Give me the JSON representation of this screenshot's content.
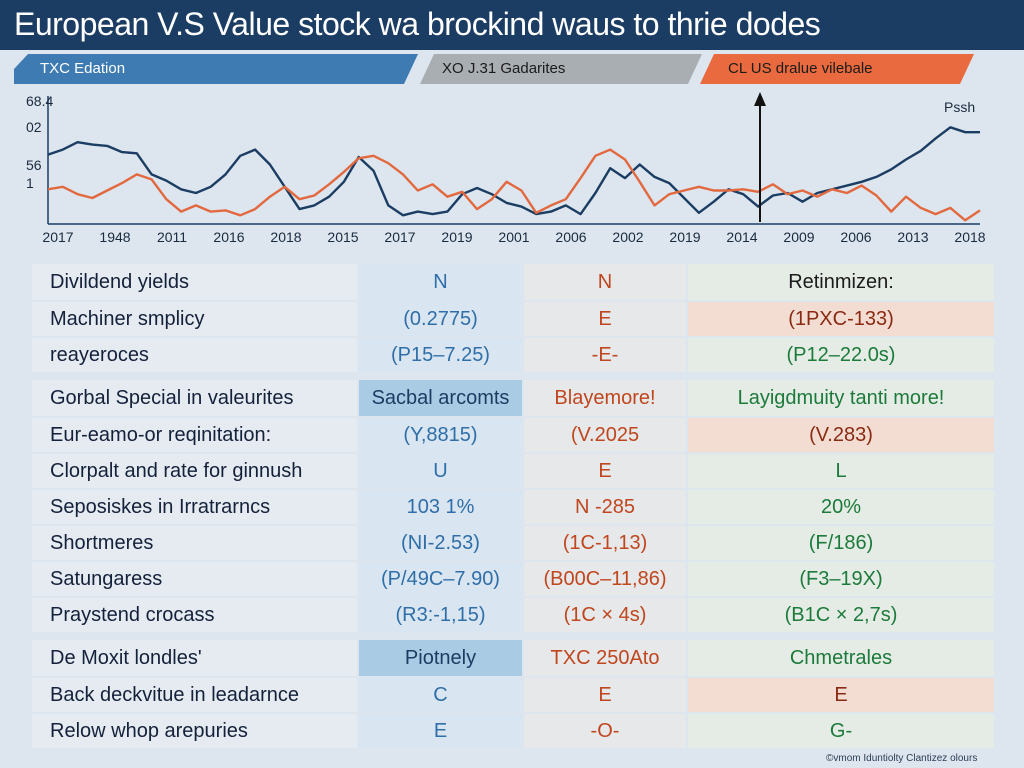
{
  "title": "European V.S Value stock wa brockind waus to thrie dodes",
  "ribbons": [
    "TXC Edation",
    "XO J.31 Gadarites",
    "CL US dralue vilebale"
  ],
  "chart_data": {
    "type": "line",
    "y_labels": [
      "68.4",
      "02",
      "56",
      "1"
    ],
    "x_labels": [
      "2017",
      "1948",
      "2011",
      "2016",
      "2018",
      "2015",
      "2017",
      "2019",
      "2001",
      "2006",
      "2002",
      "2019",
      "2014",
      "2009",
      "2006",
      "2013",
      "2018"
    ],
    "annotation": "Pssh",
    "ylim": [
      0,
      100
    ],
    "series": [
      {
        "name": "navy",
        "color": "#1c3d63",
        "values": [
          56,
          60,
          66,
          64,
          63,
          58,
          57,
          40,
          35,
          28,
          25,
          30,
          40,
          55,
          60,
          48,
          30,
          12,
          15,
          22,
          34,
          54,
          43,
          15,
          7,
          10,
          8,
          10,
          24,
          29,
          24,
          17,
          14,
          8,
          10,
          15,
          8,
          25,
          45,
          37,
          48,
          38,
          33,
          21,
          9,
          18,
          28,
          24,
          14,
          23,
          25,
          18,
          25,
          28,
          31,
          34,
          38,
          44,
          52,
          59,
          69,
          78,
          74,
          74
        ]
      },
      {
        "name": "orange",
        "color": "#e2693f",
        "values": [
          28,
          30,
          24,
          21,
          27,
          33,
          40,
          36,
          20,
          10,
          15,
          10,
          11,
          7,
          12,
          22,
          30,
          20,
          23,
          32,
          42,
          53,
          55,
          49,
          40,
          27,
          32,
          22,
          26,
          12,
          20,
          34,
          27,
          9,
          15,
          20,
          37,
          55,
          60,
          52,
          34,
          15,
          24,
          27,
          30,
          27,
          27,
          28,
          26,
          32,
          24,
          27,
          22,
          28,
          25,
          31,
          23,
          10,
          22,
          13,
          8,
          13,
          3,
          11
        ]
      }
    ]
  },
  "tables": [
    {
      "header": [
        "Divildend yields",
        "N",
        "N",
        "Retinmizen:"
      ],
      "rows": [
        [
          "Machiner smplicy",
          "(0.2775)",
          "E",
          "(1PXC-133)"
        ],
        [
          "reayeroces",
          "(P15–7.25)",
          "-E-",
          "(P12–22.0s)"
        ]
      ]
    },
    {
      "header": [
        "Gorbal Special in valeurites",
        "Sacbal arcomts",
        "Blayemore!",
        "Layigdmuity tanti more!"
      ],
      "rows": [
        [
          "Eur-eamo-or reqinitation:",
          "(Y,8815)",
          "(V.2025",
          "(V.283)"
        ],
        [
          "Clorpalt and rate for ginnush",
          "U",
          "E",
          "L"
        ],
        [
          "Seposiskes in Irratrarncs",
          "103 1%",
          "N -285",
          "20%"
        ],
        [
          "Shortmeres",
          "(NI-2.53)",
          "(1C-1,13)",
          "(F/186)"
        ],
        [
          "Satungaress",
          "(P/49C–7.90)",
          "(B00C–11,86)",
          "(F3–19X)"
        ],
        [
          "Praystend crocass",
          "(R3:-1,15)",
          "(1C × 4s)",
          "(B1C × 2,7s)"
        ]
      ]
    },
    {
      "header": [
        "De Moxit londles'",
        "Piotnely",
        "TXC 250Ato",
        "Chmetrales"
      ],
      "rows": [
        [
          "Back deckvitue in leadarnce",
          "C",
          "E",
          "E"
        ],
        [
          "Relow whop arepuries",
          "E",
          "-O-",
          "G-"
        ]
      ]
    }
  ],
  "footnote": "©vmom Iduntiolty Clantizez olours"
}
